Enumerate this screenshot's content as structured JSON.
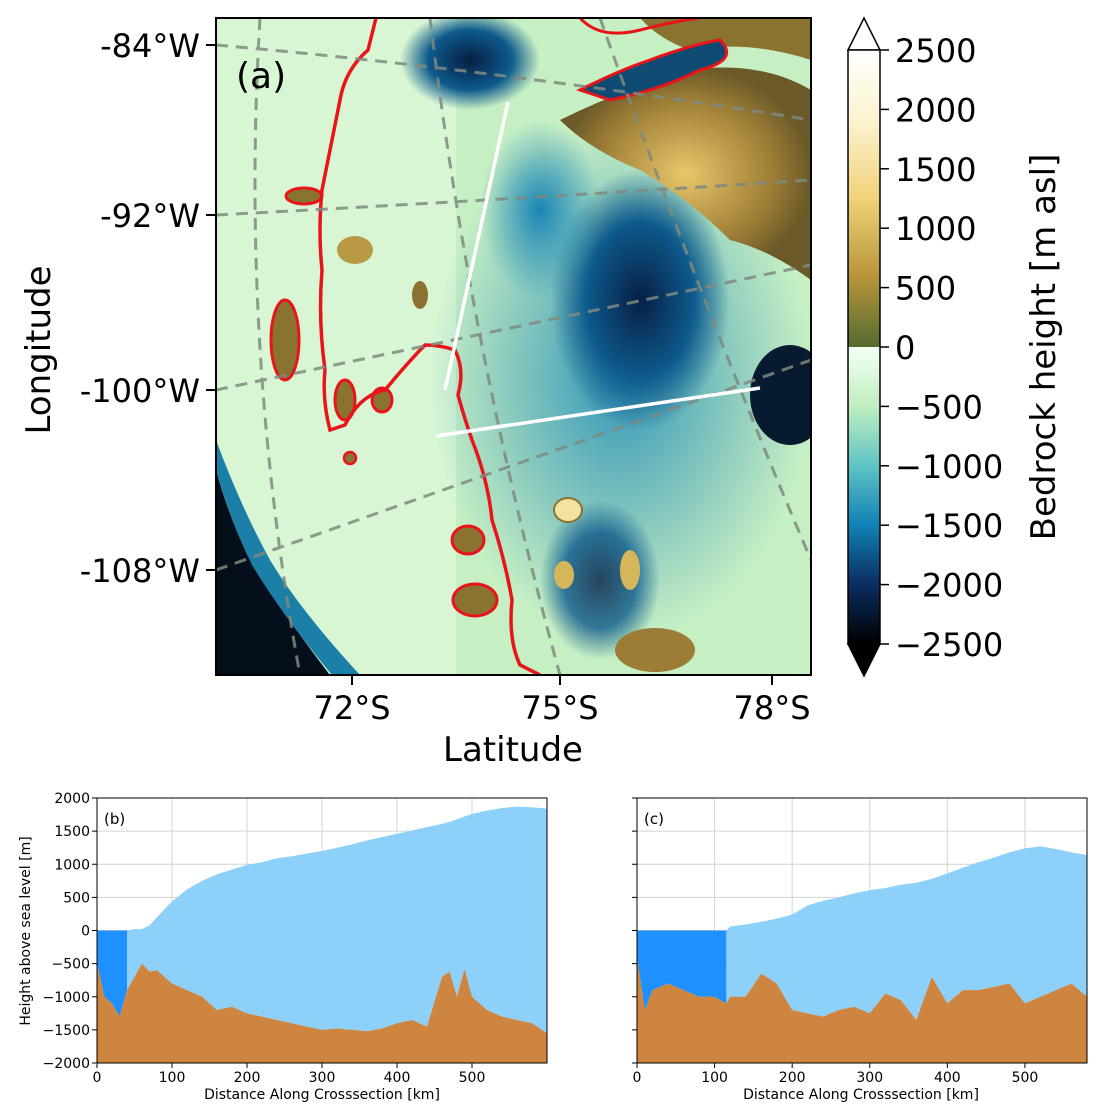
{
  "chart_data": [
    {
      "panel": "(a)",
      "type": "heatmap",
      "xlabel": "Latitude",
      "ylabel": "Longitude",
      "x_ticks": [
        "72°S",
        "75°S",
        "78°S"
      ],
      "y_ticks": [
        "-84°W",
        "-92°W",
        "-100°W",
        "-108°W"
      ],
      "colorbar": {
        "label": "Bedrock height [m asl]",
        "ticks": [
          2500,
          2000,
          1500,
          1000,
          500,
          0,
          -500,
          -1000,
          -1500,
          -2000,
          -2500
        ],
        "tick_labels": [
          "2500",
          "2000",
          "1500",
          "1000",
          "500",
          "0",
          "−500",
          "−1000",
          "−1500",
          "−2000",
          "−2500"
        ],
        "range": [
          -2500,
          2500
        ]
      },
      "colors": {
        "grounding_line": "#e8141a",
        "transects": "#ffffff",
        "graticule": "#7f8a7f"
      }
    },
    {
      "panel": "(b)",
      "type": "area",
      "xlabel": "Distance Along Crosssection [km]",
      "ylabel": "Height above sea level [m]",
      "xlim": [
        0,
        600
      ],
      "ylim": [
        -2000,
        2000
      ],
      "x_ticks": [
        0,
        100,
        200,
        300,
        400,
        500
      ],
      "y_ticks": [
        2000,
        1500,
        1000,
        500,
        0,
        -500,
        -1000,
        -1500,
        -2000
      ],
      "y_tick_labels": [
        "2000",
        "1500",
        "1000",
        "500",
        "0",
        "−500",
        "−1000",
        "−1500",
        "−2000"
      ],
      "x": [
        0,
        10,
        20,
        30,
        40,
        50,
        60,
        70,
        80,
        90,
        100,
        120,
        140,
        160,
        180,
        200,
        220,
        240,
        260,
        280,
        300,
        320,
        340,
        360,
        380,
        400,
        420,
        440,
        460,
        470,
        480,
        490,
        500,
        520,
        540,
        560,
        580,
        600
      ],
      "ice_surface": [
        0,
        0,
        0,
        0,
        0,
        20,
        20,
        80,
        200,
        320,
        440,
        620,
        750,
        850,
        920,
        990,
        1030,
        1090,
        1120,
        1160,
        1200,
        1250,
        1300,
        1360,
        1410,
        1460,
        1510,
        1560,
        1610,
        1640,
        1680,
        1720,
        1760,
        1810,
        1850,
        1870,
        1860,
        1840
      ],
      "bedrock": [
        -500,
        -1000,
        -1100,
        -1300,
        -900,
        -700,
        -500,
        -620,
        -600,
        -700,
        -800,
        -900,
        -1000,
        -1200,
        -1150,
        -1250,
        -1300,
        -1350,
        -1400,
        -1450,
        -1500,
        -1480,
        -1500,
        -1520,
        -1480,
        -1400,
        -1350,
        -1450,
        -700,
        -620,
        -1000,
        -580,
        -1000,
        -1200,
        -1300,
        -1350,
        -1400,
        -1550
      ],
      "ocean_extent": [
        0,
        40
      ],
      "colors": {
        "ice": "#87cefa",
        "ocean": "#1e90ff",
        "bedrock": "#cd853f"
      }
    },
    {
      "panel": "(c)",
      "type": "area",
      "xlabel": "Distance Along Crosssection [km]",
      "ylabel": "",
      "xlim": [
        0,
        580
      ],
      "ylim": [
        -2000,
        2000
      ],
      "x_ticks": [
        0,
        100,
        200,
        300,
        400,
        500
      ],
      "x": [
        0,
        10,
        20,
        40,
        60,
        80,
        100,
        115,
        120,
        140,
        160,
        180,
        200,
        220,
        240,
        260,
        280,
        300,
        320,
        340,
        360,
        380,
        400,
        420,
        440,
        460,
        480,
        500,
        520,
        540,
        560,
        580
      ],
      "ice_surface": [
        0,
        0,
        0,
        0,
        0,
        0,
        0,
        0,
        60,
        90,
        130,
        180,
        240,
        380,
        450,
        500,
        560,
        610,
        640,
        690,
        720,
        780,
        860,
        950,
        1030,
        1100,
        1180,
        1240,
        1270,
        1230,
        1180,
        1140
      ],
      "bedrock": [
        -400,
        -1200,
        -900,
        -800,
        -900,
        -1000,
        -1000,
        -1100,
        -1000,
        -1000,
        -650,
        -800,
        -1200,
        -1250,
        -1300,
        -1200,
        -1150,
        -1250,
        -950,
        -1050,
        -1350,
        -700,
        -1100,
        -900,
        -900,
        -850,
        -800,
        -1100,
        -1000,
        -900,
        -800,
        -1000
      ],
      "ocean_extent": [
        0,
        115
      ],
      "colors": {
        "ice": "#87cefa",
        "ocean": "#1e90ff",
        "bedrock": "#cd853f"
      }
    }
  ]
}
